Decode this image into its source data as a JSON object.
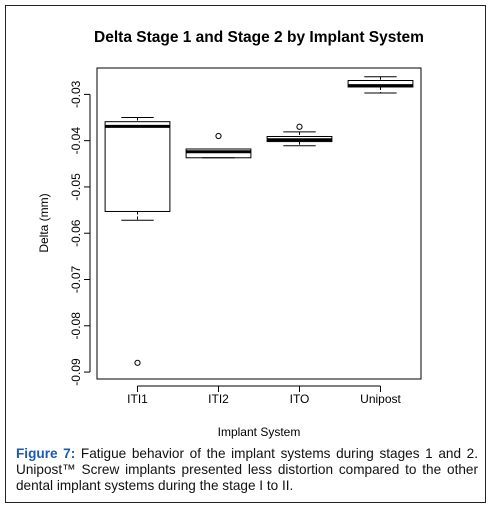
{
  "chart_data": {
    "type": "boxplot",
    "title": "Delta Stage 1 and Stage 2 by Implant System",
    "xlabel": "Implant System",
    "ylabel": "Delta (mm)",
    "categories": [
      "ITI1",
      "ITI2",
      "ITO",
      "Unipost"
    ],
    "yticks": [
      "-0.03",
      "-0.04",
      "-0.05",
      "-0.06",
      "-0.07",
      "-0.08",
      "-0.09"
    ],
    "ylim": [
      -0.0915,
      -0.0243
    ],
    "boxes": [
      {
        "category": "ITI1",
        "whisker_low": -0.0572,
        "q1": -0.0553,
        "median": -0.0369,
        "q3": -0.0359,
        "whisker_high": -0.035,
        "outliers": [
          -0.088
        ]
      },
      {
        "category": "ITI2",
        "whisker_low": -0.0437,
        "q1": -0.0437,
        "median": -0.0424,
        "q3": -0.0418,
        "whisker_high": -0.0418,
        "outliers": [
          -0.039
        ]
      },
      {
        "category": "ITO",
        "whisker_low": -0.0411,
        "q1": -0.0402,
        "median": -0.0398,
        "q3": -0.0391,
        "whisker_high": -0.0381,
        "outliers": [
          -0.037
        ]
      },
      {
        "category": "Unipost",
        "whisker_low": -0.0297,
        "q1": -0.0284,
        "median": -0.0281,
        "q3": -0.027,
        "whisker_high": -0.0262,
        "outliers": []
      }
    ],
    "grid": false,
    "legend": "none"
  },
  "caption": {
    "label": "Figure 7:",
    "text": " Fatigue behavior of the implant systems during stages 1 and 2. Unipost™ Screw implants presented less distortion compared to the other dental implant systems during the stage I to II."
  }
}
